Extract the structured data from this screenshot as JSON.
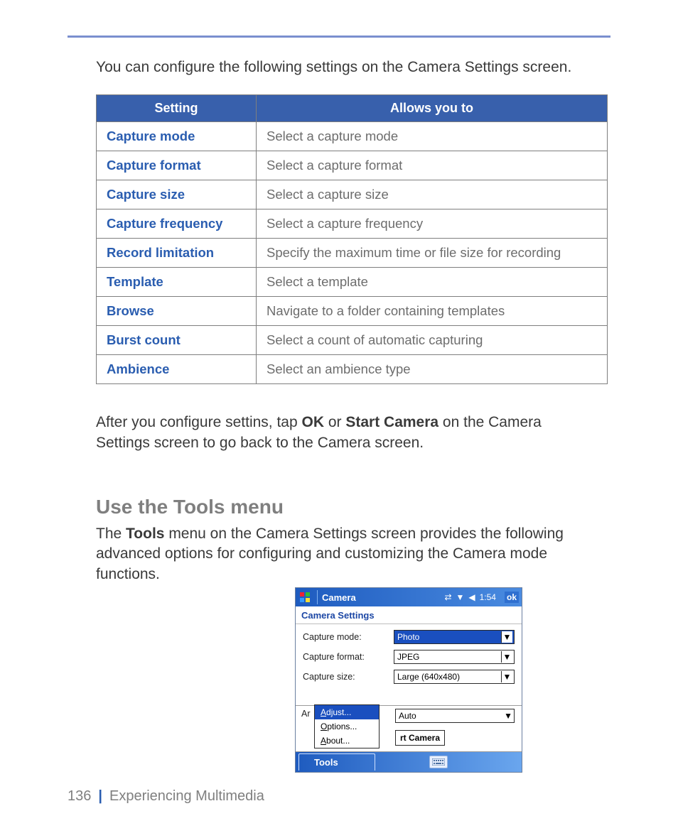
{
  "colors": {
    "rule": "#7a8fcf",
    "table_header_bg": "#3860ac",
    "table_header_fg": "#ffffff",
    "table_border": "#7e7e7e",
    "link_blue": "#2a5db0",
    "body_text": "#3a3a3a",
    "muted_text": "#6d6d6d",
    "heading_gray": "#7f7f7f",
    "titlebar_from": "#1e5bbf",
    "titlebar_to": "#4a8be0",
    "highlight_bg": "#1a4fbf"
  },
  "intro": "You can configure the following settings on the Camera Settings screen.",
  "table": {
    "columns": [
      "Setting",
      "Allows you to"
    ],
    "rows": [
      [
        "Capture mode",
        "Select a capture mode"
      ],
      [
        "Capture format",
        "Select a capture format"
      ],
      [
        "Capture size",
        "Select a capture size"
      ],
      [
        "Capture frequency",
        "Select a capture frequency"
      ],
      [
        "Record limitation",
        "Specify the maximum time or file size for recording"
      ],
      [
        "Template",
        "Select a template"
      ],
      [
        "Browse",
        "Navigate to a folder containing templates"
      ],
      [
        "Burst count",
        "Select a count of automatic capturing"
      ],
      [
        "Ambience",
        "Select an ambience type"
      ]
    ]
  },
  "after_text_1": "After you configure settins, tap ",
  "after_bold_1": "OK",
  "after_text_2": " or ",
  "after_bold_2": "Start Camera",
  "after_text_3": " on the Camera Settings screen to go back to the Camera screen.",
  "section_heading": "Use the Tools menu",
  "tools_text_1": "The ",
  "tools_bold": "Tools",
  "tools_text_2": " menu on the Camera Settings screen provides the following advanced options for configuring and customizing the Camera mode functions.",
  "device": {
    "title": "Camera",
    "time": "1:54",
    "ok": "ok",
    "subheader": "Camera Settings",
    "fields": {
      "capture_mode": {
        "label": "Capture mode:",
        "value": "Photo",
        "selected": true
      },
      "capture_format": {
        "label": "Capture format:",
        "value": "JPEG",
        "selected": false
      },
      "capture_size": {
        "label": "Capture size:",
        "value": "Large (640x480)",
        "selected": false
      }
    },
    "ambience_prefix": "Ar",
    "ambience_value": "Auto",
    "popup": {
      "items": [
        "Adjust...",
        "Options...",
        "About..."
      ],
      "highlight_index": 0
    },
    "button_fragment": "rt Camera",
    "menubar": {
      "tools": "Tools"
    }
  },
  "footer": {
    "page": "136",
    "chapter": "Experiencing Multimedia"
  }
}
